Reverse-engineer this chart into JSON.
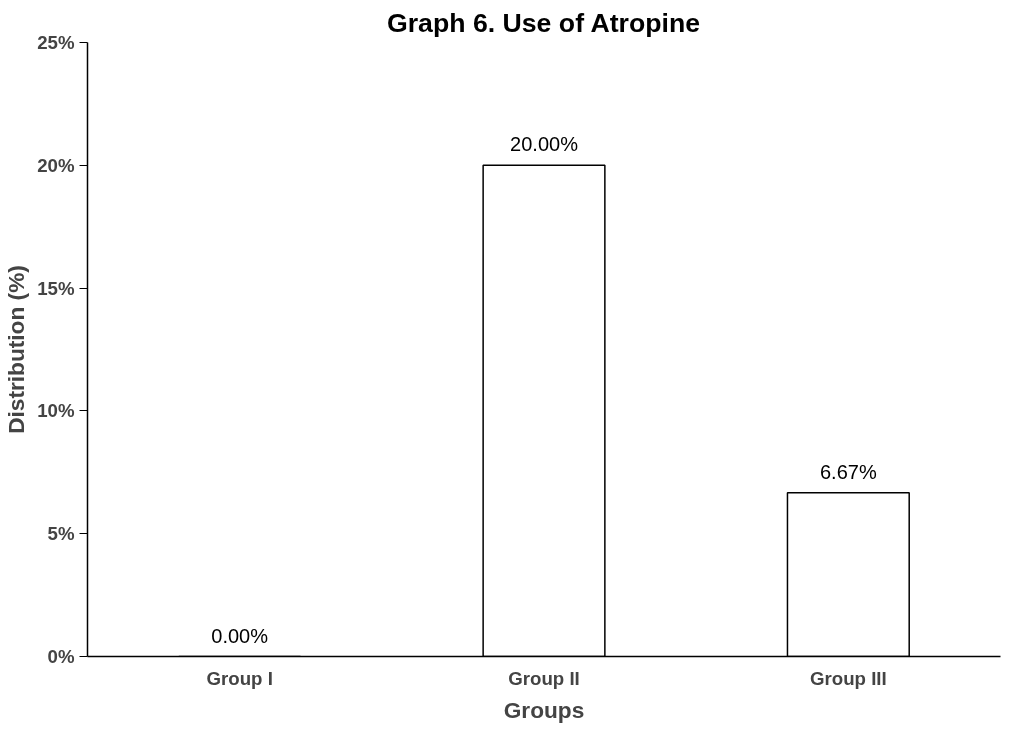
{
  "chart_data": {
    "type": "bar",
    "title": "Graph 6. Use of Atropine",
    "xlabel": "Groups",
    "ylabel": "Distribution (%)",
    "categories": [
      "Group I",
      "Group II",
      "Group III"
    ],
    "values": [
      0,
      20,
      6.67
    ],
    "color": "#ffffff",
    "value_labels": [
      "0.00%",
      "20.00%",
      "6.67%"
    ],
    "ylim": [
      0,
      25
    ],
    "yticks": [
      {
        "value": 0,
        "label": "0%"
      },
      {
        "value": 5,
        "label": "5%"
      },
      {
        "value": 10,
        "label": "10%"
      },
      {
        "value": 15,
        "label": "15%"
      },
      {
        "value": 20,
        "label": "20%"
      },
      {
        "value": 25,
        "label": "25%"
      }
    ],
    "grid": false
  }
}
